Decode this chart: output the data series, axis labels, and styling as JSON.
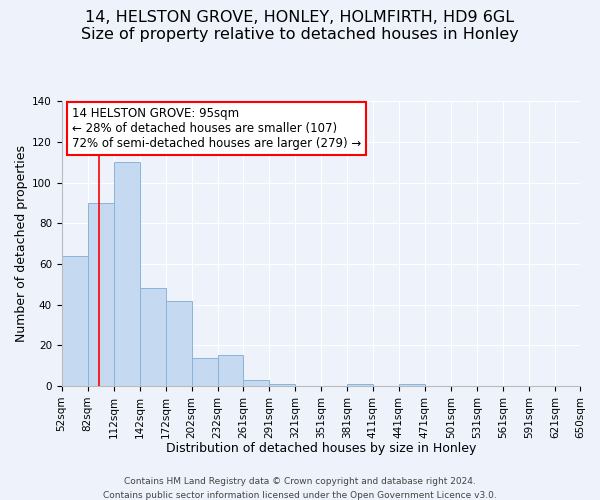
{
  "title": "14, HELSTON GROVE, HONLEY, HOLMFIRTH, HD9 6GL",
  "subtitle": "Size of property relative to detached houses in Honley",
  "xlabel": "Distribution of detached houses by size in Honley",
  "ylabel": "Number of detached properties",
  "bar_color": "#c5d9f0",
  "bar_edgecolor": "#8ab4d8",
  "background_color": "#eef2fb",
  "grid_color": "#ffffff",
  "bin_edges": [
    52,
    82,
    112,
    142,
    172,
    202,
    232,
    261,
    291,
    321,
    351,
    381,
    411,
    441,
    471,
    501,
    531,
    561,
    591,
    621,
    650
  ],
  "bin_labels": [
    "52sqm",
    "82sqm",
    "112sqm",
    "142sqm",
    "172sqm",
    "202sqm",
    "232sqm",
    "261sqm",
    "291sqm",
    "321sqm",
    "351sqm",
    "381sqm",
    "411sqm",
    "441sqm",
    "471sqm",
    "501sqm",
    "531sqm",
    "561sqm",
    "591sqm",
    "621sqm",
    "650sqm"
  ],
  "bar_heights": [
    64,
    90,
    110,
    48,
    42,
    14,
    15,
    3,
    1,
    0,
    0,
    1,
    0,
    1,
    0,
    0,
    0,
    0,
    0,
    0
  ],
  "ylim": [
    0,
    140
  ],
  "yticks": [
    0,
    20,
    40,
    60,
    80,
    100,
    120,
    140
  ],
  "property_line_x": 95,
  "property_line_label": "14 HELSTON GROVE: 95sqm",
  "annotation_line1": "← 28% of detached houses are smaller (107)",
  "annotation_line2": "72% of semi-detached houses are larger (279) →",
  "footer_line1": "Contains HM Land Registry data © Crown copyright and database right 2024.",
  "footer_line2": "Contains public sector information licensed under the Open Government Licence v3.0.",
  "title_fontsize": 11.5,
  "subtitle_fontsize": 10,
  "axis_label_fontsize": 9,
  "tick_fontsize": 7.5,
  "annotation_fontsize": 8.5,
  "footer_fontsize": 6.5
}
